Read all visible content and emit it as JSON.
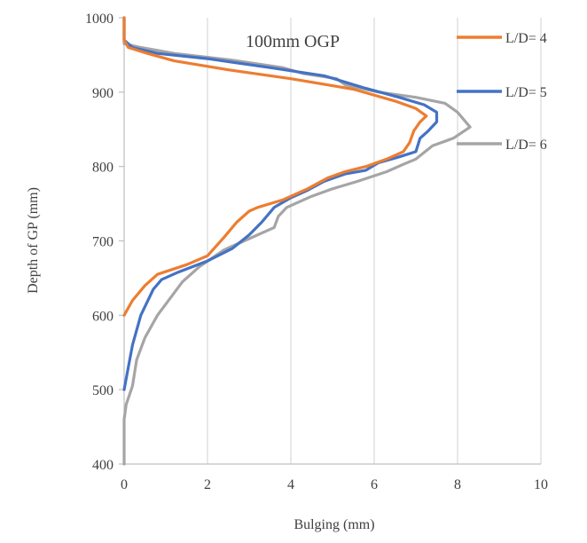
{
  "chart_data": {
    "type": "line",
    "title": "100mm OGP",
    "xlabel": "Bulging (mm)",
    "ylabel": "Depth of GP (mm)",
    "xlim": [
      0,
      10
    ],
    "ylim": [
      400,
      1000
    ],
    "xticks": [
      "0",
      "2",
      "4",
      "6",
      "8",
      "10"
    ],
    "yticks": [
      "400",
      "500",
      "600",
      "700",
      "800",
      "900",
      "1000"
    ],
    "grid": "vertical",
    "legend_position": "right",
    "series": [
      {
        "name": "L/D= 4",
        "color": "#ED7D31",
        "points": [
          [
            0.0,
            1000
          ],
          [
            0.0,
            970
          ],
          [
            0.1,
            960
          ],
          [
            0.5,
            953
          ],
          [
            1.2,
            942
          ],
          [
            2.5,
            930
          ],
          [
            4.0,
            918
          ],
          [
            5.5,
            904
          ],
          [
            6.5,
            888
          ],
          [
            7.0,
            878
          ],
          [
            7.25,
            868
          ],
          [
            7.1,
            860
          ],
          [
            6.95,
            848
          ],
          [
            6.85,
            832
          ],
          [
            6.7,
            820
          ],
          [
            6.3,
            810
          ],
          [
            5.8,
            800
          ],
          [
            5.3,
            793
          ],
          [
            4.9,
            785
          ],
          [
            4.4,
            770
          ],
          [
            3.8,
            755
          ],
          [
            3.2,
            745
          ],
          [
            3.0,
            740
          ],
          [
            2.7,
            725
          ],
          [
            2.4,
            705
          ],
          [
            2.0,
            680
          ],
          [
            1.5,
            668
          ],
          [
            0.8,
            655
          ],
          [
            0.5,
            640
          ],
          [
            0.2,
            620
          ],
          [
            0.0,
            600
          ]
        ]
      },
      {
        "name": "L/D= 5",
        "color": "#4472C4",
        "points": [
          [
            0.0,
            1000
          ],
          [
            0.0,
            970
          ],
          [
            0.2,
            960
          ],
          [
            0.8,
            952
          ],
          [
            2.0,
            945
          ],
          [
            3.5,
            933
          ],
          [
            4.8,
            922
          ],
          [
            5.8,
            905
          ],
          [
            6.6,
            893
          ],
          [
            7.2,
            883
          ],
          [
            7.5,
            873
          ],
          [
            7.5,
            860
          ],
          [
            7.3,
            848
          ],
          [
            7.1,
            838
          ],
          [
            7.0,
            820
          ],
          [
            6.6,
            813
          ],
          [
            6.1,
            805
          ],
          [
            5.8,
            795
          ],
          [
            5.3,
            790
          ],
          [
            4.8,
            780
          ],
          [
            4.4,
            768
          ],
          [
            4.0,
            758
          ],
          [
            3.6,
            745
          ],
          [
            3.3,
            725
          ],
          [
            3.0,
            708
          ],
          [
            2.6,
            690
          ],
          [
            2.0,
            673
          ],
          [
            1.3,
            658
          ],
          [
            0.9,
            648
          ],
          [
            0.7,
            635
          ],
          [
            0.4,
            600
          ],
          [
            0.2,
            560
          ],
          [
            0.1,
            530
          ],
          [
            0.0,
            500
          ]
        ]
      },
      {
        "name": "L/D= 6",
        "color": "#A5A5A5",
        "points": [
          [
            0.0,
            1000
          ],
          [
            0.0,
            965
          ],
          [
            0.4,
            960
          ],
          [
            1.2,
            952
          ],
          [
            2.6,
            943
          ],
          [
            3.8,
            933
          ],
          [
            4.3,
            925
          ],
          [
            5.1,
            918
          ],
          [
            5.3,
            910
          ],
          [
            6.1,
            900
          ],
          [
            7.0,
            893
          ],
          [
            7.7,
            885
          ],
          [
            8.0,
            873
          ],
          [
            8.3,
            853
          ],
          [
            7.9,
            838
          ],
          [
            7.4,
            828
          ],
          [
            7.0,
            810
          ],
          [
            6.7,
            803
          ],
          [
            6.3,
            793
          ],
          [
            5.6,
            780
          ],
          [
            5.0,
            770
          ],
          [
            4.5,
            760
          ],
          [
            3.9,
            745
          ],
          [
            3.7,
            733
          ],
          [
            3.6,
            718
          ],
          [
            3.0,
            703
          ],
          [
            2.4,
            688
          ],
          [
            1.8,
            665
          ],
          [
            1.4,
            645
          ],
          [
            0.8,
            600
          ],
          [
            0.5,
            570
          ],
          [
            0.3,
            540
          ],
          [
            0.2,
            505
          ],
          [
            0.05,
            480
          ],
          [
            0.0,
            460
          ],
          [
            0.0,
            400
          ]
        ]
      }
    ]
  }
}
